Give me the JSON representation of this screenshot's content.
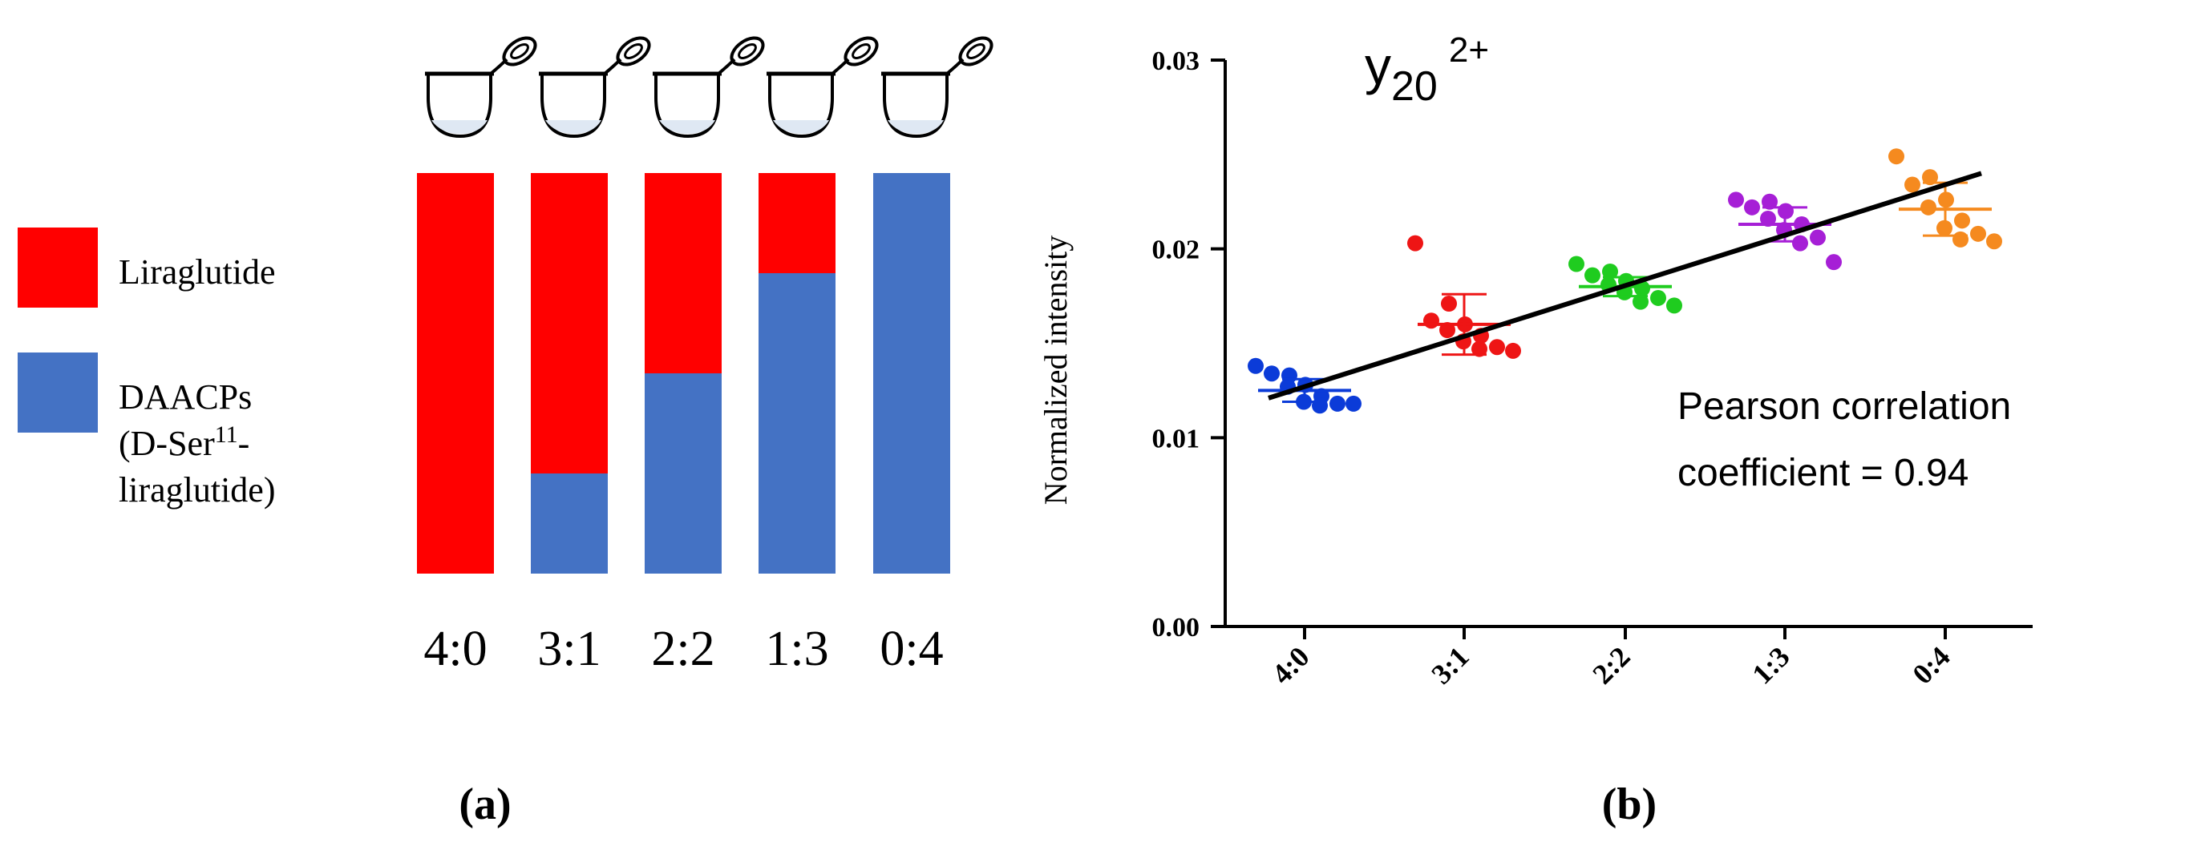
{
  "colors": {
    "liraglutide": "#ff0000",
    "daacps": "#4472c4",
    "scatter": [
      "#0b3bd8",
      "#ee1515",
      "#1fcc1f",
      "#a61fd6",
      "#f58a1f"
    ],
    "fit_line": "#000000",
    "tube_liquid": "#dfe8f3"
  },
  "icons": [
    "tube-icon"
  ],
  "chart_data": [
    {
      "type": "bar",
      "stacked": true,
      "panel_label": "(a)",
      "categories": [
        "4:0",
        "3:1",
        "2:2",
        "1:3",
        "0:4"
      ],
      "series": [
        {
          "name": "DAACPs (D-Ser11-liraglutide)",
          "legend_lines": [
            "DAACPs",
            "(D-Ser",
            "11",
            "-",
            "liraglutide)"
          ],
          "color": "#4472c4",
          "values": [
            0,
            1,
            2,
            3,
            4
          ]
        },
        {
          "name": "Liraglutide",
          "color": "#ff0000",
          "values": [
            4,
            3,
            2,
            1,
            0
          ]
        }
      ],
      "ylim": [
        0,
        4
      ],
      "legend": "left"
    },
    {
      "type": "scatter",
      "panel_label": "(b)",
      "title": {
        "base": "y",
        "sub": "20",
        "sup": "2+"
      },
      "ylabel": "Normalized intensity",
      "categories": [
        "4:0",
        "3:1",
        "2:2",
        "1:3",
        "0:4"
      ],
      "yticks": [
        "0.00",
        "0.01",
        "0.02",
        "0.03"
      ],
      "ylim": [
        0,
        0.03
      ],
      "groups": [
        {
          "category": "4:0",
          "mean": 0.0125,
          "sd": 0.0006,
          "values": [
            0.0138,
            0.0133,
            0.0134,
            0.0128,
            0.0127,
            0.0122,
            0.0119,
            0.0118,
            0.0117,
            0.0118
          ]
        },
        {
          "category": "3:1",
          "mean": 0.016,
          "sd": 0.0016,
          "values": [
            0.0203,
            0.0171,
            0.0162,
            0.016,
            0.0157,
            0.0154,
            0.0151,
            0.0148,
            0.0147,
            0.0146
          ]
        },
        {
          "category": "2:2",
          "mean": 0.018,
          "sd": 0.0005,
          "values": [
            0.0192,
            0.0188,
            0.0186,
            0.0183,
            0.0181,
            0.0179,
            0.0177,
            0.0174,
            0.0172,
            0.017
          ]
        },
        {
          "category": "1:3",
          "mean": 0.0213,
          "sd": 0.0009,
          "values": [
            0.0226,
            0.0225,
            0.0222,
            0.022,
            0.0216,
            0.0213,
            0.021,
            0.0206,
            0.0203,
            0.0193
          ]
        },
        {
          "category": "0:4",
          "mean": 0.0221,
          "sd": 0.0014,
          "values": [
            0.0249,
            0.0238,
            0.0234,
            0.0226,
            0.0222,
            0.0215,
            0.0211,
            0.0208,
            0.0205,
            0.0204
          ]
        }
      ],
      "fit": {
        "start": 0.0121,
        "end": 0.024
      },
      "annotation": [
        "Pearson correlation",
        "coefficient = 0.94"
      ],
      "grid": false
    }
  ]
}
